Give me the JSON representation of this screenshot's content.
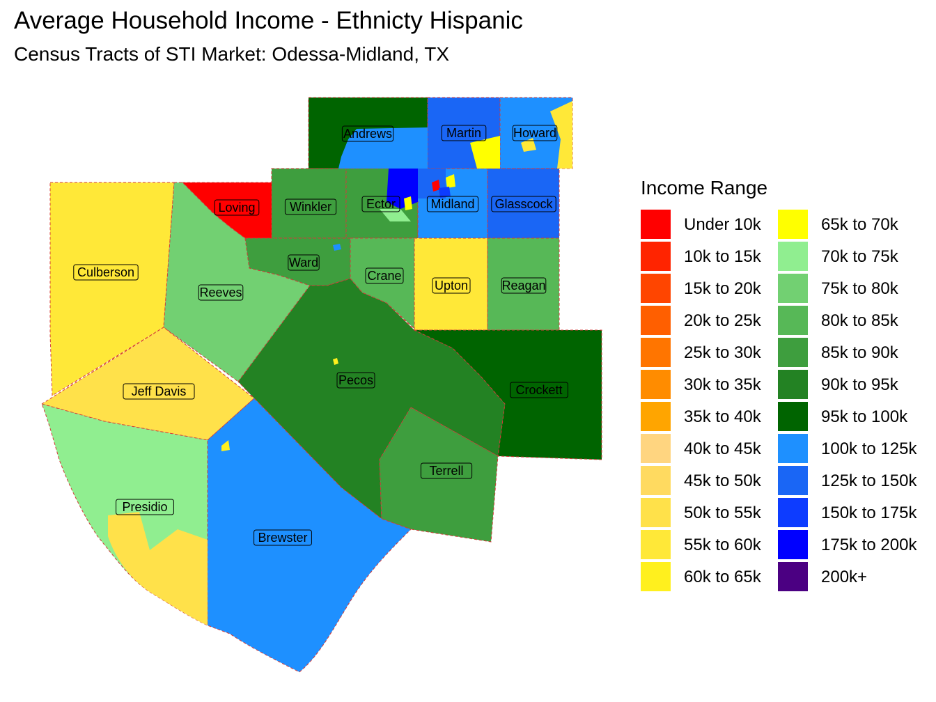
{
  "title": "Average Household Income - Ethnicty Hispanic",
  "subtitle": "Census Tracts of STI Market: Odessa-Midland, TX",
  "legend": {
    "title": "Income Range",
    "items": [
      {
        "label": "Under 10k",
        "color": "#ff0000"
      },
      {
        "label": "10k to 15k",
        "color": "#ff2400"
      },
      {
        "label": "15k to 20k",
        "color": "#ff4500"
      },
      {
        "label": "20k to 25k",
        "color": "#ff5f00"
      },
      {
        "label": "25k to 30k",
        "color": "#ff7500"
      },
      {
        "label": "30k to 35k",
        "color": "#ff8c00"
      },
      {
        "label": "35k to 40k",
        "color": "#ffa500"
      },
      {
        "label": "40k to 45k",
        "color": "#ffd580"
      },
      {
        "label": "45k to 50k",
        "color": "#ffda60"
      },
      {
        "label": "50k to 55k",
        "color": "#ffe14a"
      },
      {
        "label": "55k to 60k",
        "color": "#ffe838"
      },
      {
        "label": "60k to 65k",
        "color": "#fff01e"
      },
      {
        "label": "65k to 70k",
        "color": "#ffff00"
      },
      {
        "label": "70k to 75k",
        "color": "#90ee90"
      },
      {
        "label": "75k to 80k",
        "color": "#72d072"
      },
      {
        "label": "80k to 85k",
        "color": "#57b857"
      },
      {
        "label": "85k to 90k",
        "color": "#3e9e3e"
      },
      {
        "label": "90k to 95k",
        "color": "#238223"
      },
      {
        "label": "95k to 100k",
        "color": "#006400"
      },
      {
        "label": "100k to 125k",
        "color": "#1e90ff"
      },
      {
        "label": "125k to 150k",
        "color": "#1a66f5"
      },
      {
        "label": "150k to 175k",
        "color": "#0d3cff"
      },
      {
        "label": "175k to 200k",
        "color": "#0000ff"
      },
      {
        "label": "200k+",
        "color": "#4b0082"
      }
    ]
  },
  "counties": [
    {
      "name": "Andrews",
      "color": "#006400"
    },
    {
      "name": "Martin",
      "color": "#1a66f5"
    },
    {
      "name": "Howard",
      "color": "#1e90ff"
    },
    {
      "name": "Loving",
      "color": "#ff0000"
    },
    {
      "name": "Winkler",
      "color": "#3e9e3e"
    },
    {
      "name": "Ector",
      "color": "#3e9e3e"
    },
    {
      "name": "Midland",
      "color": "#1e90ff"
    },
    {
      "name": "Glasscock",
      "color": "#1a66f5"
    },
    {
      "name": "Culberson",
      "color": "#ffe838"
    },
    {
      "name": "Reeves",
      "color": "#72d072"
    },
    {
      "name": "Ward",
      "color": "#3e9e3e"
    },
    {
      "name": "Crane",
      "color": "#57b857"
    },
    {
      "name": "Upton",
      "color": "#ffe838"
    },
    {
      "name": "Reagan",
      "color": "#57b857"
    },
    {
      "name": "Jeff Davis",
      "color": "#ffe14a"
    },
    {
      "name": "Pecos",
      "color": "#238223"
    },
    {
      "name": "Crockett",
      "color": "#006400"
    },
    {
      "name": "Terrell",
      "color": "#3e9e3e"
    },
    {
      "name": "Presidio",
      "color": "#90ee90"
    },
    {
      "name": "Brewster",
      "color": "#1e90ff"
    }
  ]
}
